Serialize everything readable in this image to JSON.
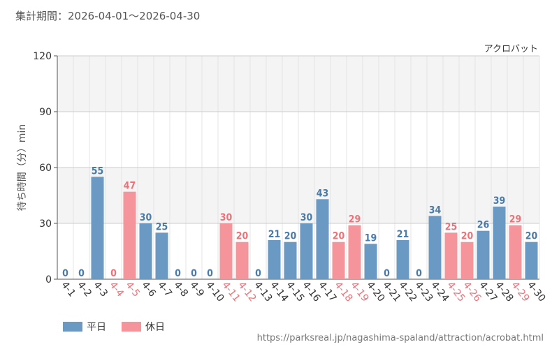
{
  "period_label": "集計期間：2026-04-01～2026-04-30",
  "source_url": "https://parksreal.jp/nagashima-spaland/attraction/acrobat.html",
  "colors": {
    "weekday": "#6a9ac4",
    "holiday": "#f5949a",
    "weekday_label": "#4a7aa8",
    "holiday_label": "#f07078"
  },
  "legend": {
    "weekday": "平日",
    "holiday": "休日"
  },
  "chart_data": {
    "type": "bar",
    "title": "アクロバット",
    "xlabel": "",
    "ylabel": "待ち時間（分）min",
    "ylim": [
      0,
      120
    ],
    "yticks": [
      0,
      30,
      60,
      90,
      120
    ],
    "grid": true,
    "legend_position": "bottom-left",
    "categories": [
      "4-1",
      "4-2",
      "4-3",
      "4-4",
      "4-5",
      "4-6",
      "4-7",
      "4-8",
      "4-9",
      "4-10",
      "4-11",
      "4-12",
      "4-13",
      "4-14",
      "4-15",
      "4-16",
      "4-17",
      "4-18",
      "4-19",
      "4-20",
      "4-21",
      "4-22",
      "4-23",
      "4-24",
      "4-25",
      "4-26",
      "4-27",
      "4-28",
      "4-29",
      "4-30"
    ],
    "values": [
      0,
      0,
      55,
      0,
      47,
      30,
      25,
      0,
      0,
      0,
      30,
      20,
      0,
      21,
      20,
      30,
      43,
      20,
      29,
      19,
      0,
      21,
      0,
      34,
      25,
      20,
      26,
      39,
      29,
      20
    ],
    "holiday": [
      false,
      false,
      false,
      true,
      true,
      false,
      false,
      false,
      false,
      false,
      true,
      true,
      false,
      false,
      false,
      false,
      false,
      true,
      true,
      false,
      false,
      false,
      false,
      false,
      true,
      true,
      false,
      false,
      true,
      false
    ]
  }
}
